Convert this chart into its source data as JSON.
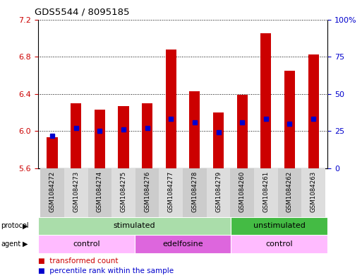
{
  "title": "GDS5544 / 8095185",
  "samples": [
    "GSM1084272",
    "GSM1084273",
    "GSM1084274",
    "GSM1084275",
    "GSM1084276",
    "GSM1084277",
    "GSM1084278",
    "GSM1084279",
    "GSM1084260",
    "GSM1084261",
    "GSM1084262",
    "GSM1084263"
  ],
  "bar_top": [
    5.93,
    6.3,
    6.23,
    6.27,
    6.3,
    6.88,
    6.43,
    6.2,
    6.39,
    7.05,
    6.65,
    6.82
  ],
  "bar_bottom": [
    5.6,
    5.6,
    5.6,
    5.6,
    5.6,
    5.6,
    5.6,
    5.6,
    5.6,
    5.6,
    5.6,
    5.6
  ],
  "percentile": [
    22,
    27,
    25,
    26,
    27,
    33,
    31,
    24,
    31,
    33,
    30,
    33
  ],
  "ylim": [
    5.6,
    7.2
  ],
  "yticks_left": [
    5.6,
    6.0,
    6.4,
    6.8,
    7.2
  ],
  "yticks_right": [
    0,
    25,
    50,
    75,
    100
  ],
  "bar_color": "#cc0000",
  "dot_color": "#0000cc",
  "protocol_labels": [
    {
      "label": "stimulated",
      "start": 0,
      "end": 8,
      "color": "#aaddaa"
    },
    {
      "label": "unstimulated",
      "start": 8,
      "end": 12,
      "color": "#44bb44"
    }
  ],
  "agent_labels": [
    {
      "label": "control",
      "start": 0,
      "end": 4,
      "color": "#ffbbff"
    },
    {
      "label": "edelfosine",
      "start": 4,
      "end": 8,
      "color": "#dd66dd"
    },
    {
      "label": "control",
      "start": 8,
      "end": 12,
      "color": "#ffbbff"
    }
  ],
  "bg_color": "#ffffff",
  "ylabel_left_color": "#cc0000",
  "ylabel_right_color": "#0000cc",
  "sample_bg_even": "#cccccc",
  "sample_bg_odd": "#dddddd"
}
